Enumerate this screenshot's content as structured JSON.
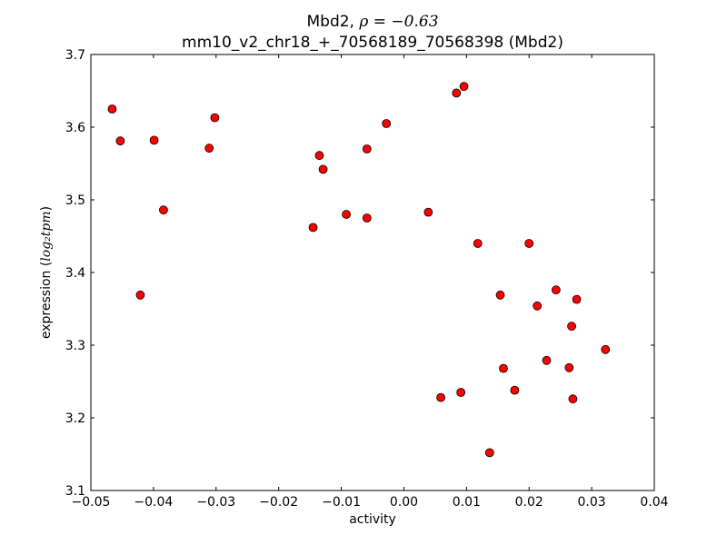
{
  "chart_data": {
    "type": "scatter",
    "title": "Mbd2, ρ = −0.63",
    "title_parts": {
      "prefix": "Mbd2, ",
      "rho_symbol": "ρ",
      "rho_value": " = −0.63"
    },
    "subtitle": "mm10_v2_chr18_+_70568189_70568398 (Mbd2)",
    "xlabel": "activity",
    "ylabel": "expression (log₂tpm)",
    "ylabel_parts": {
      "prefix": "expression (",
      "math": "log₂tpm",
      "suffix": ")"
    },
    "xlim": [
      -0.05,
      0.04
    ],
    "ylim": [
      3.1,
      3.7
    ],
    "grid": false,
    "legend": "none",
    "xticks": [
      -0.05,
      -0.04,
      -0.03,
      -0.02,
      -0.01,
      0.0,
      0.01,
      0.02,
      0.03,
      0.04
    ],
    "xtick_labels": [
      "−0.05",
      "−0.04",
      "−0.03",
      "−0.02",
      "−0.01",
      "0.00",
      "0.01",
      "0.02",
      "0.03",
      "0.04"
    ],
    "yticks": [
      3.1,
      3.2,
      3.3,
      3.4,
      3.5,
      3.6,
      3.7
    ],
    "ytick_labels": [
      "3.1",
      "3.2",
      "3.3",
      "3.4",
      "3.5",
      "3.6",
      "3.7"
    ],
    "marker_color": "#ff0000",
    "marker_edge_color": "#000000",
    "points": [
      {
        "x": -0.0466,
        "y": 3.625
      },
      {
        "x": -0.0453,
        "y": 3.581
      },
      {
        "x": -0.0399,
        "y": 3.582
      },
      {
        "x": -0.0384,
        "y": 3.486
      },
      {
        "x": -0.0421,
        "y": 3.369
      },
      {
        "x": -0.0311,
        "y": 3.571
      },
      {
        "x": -0.0302,
        "y": 3.613
      },
      {
        "x": -0.0135,
        "y": 3.561
      },
      {
        "x": -0.0129,
        "y": 3.542
      },
      {
        "x": -0.0145,
        "y": 3.462
      },
      {
        "x": -0.0092,
        "y": 3.48
      },
      {
        "x": -0.0059,
        "y": 3.57
      },
      {
        "x": -0.0059,
        "y": 3.475
      },
      {
        "x": -0.0028,
        "y": 3.605
      },
      {
        "x": 0.0039,
        "y": 3.483
      },
      {
        "x": 0.0059,
        "y": 3.228
      },
      {
        "x": 0.0084,
        "y": 3.647
      },
      {
        "x": 0.0096,
        "y": 3.656
      },
      {
        "x": 0.0091,
        "y": 3.235
      },
      {
        "x": 0.0118,
        "y": 3.44
      },
      {
        "x": 0.0137,
        "y": 3.152
      },
      {
        "x": 0.0154,
        "y": 3.369
      },
      {
        "x": 0.0159,
        "y": 3.268
      },
      {
        "x": 0.0177,
        "y": 3.238
      },
      {
        "x": 0.02,
        "y": 3.44
      },
      {
        "x": 0.0213,
        "y": 3.354
      },
      {
        "x": 0.0228,
        "y": 3.279
      },
      {
        "x": 0.0243,
        "y": 3.376
      },
      {
        "x": 0.0264,
        "y": 3.269
      },
      {
        "x": 0.0268,
        "y": 3.326
      },
      {
        "x": 0.027,
        "y": 3.226
      },
      {
        "x": 0.0276,
        "y": 3.363
      },
      {
        "x": 0.0322,
        "y": 3.294
      }
    ]
  }
}
